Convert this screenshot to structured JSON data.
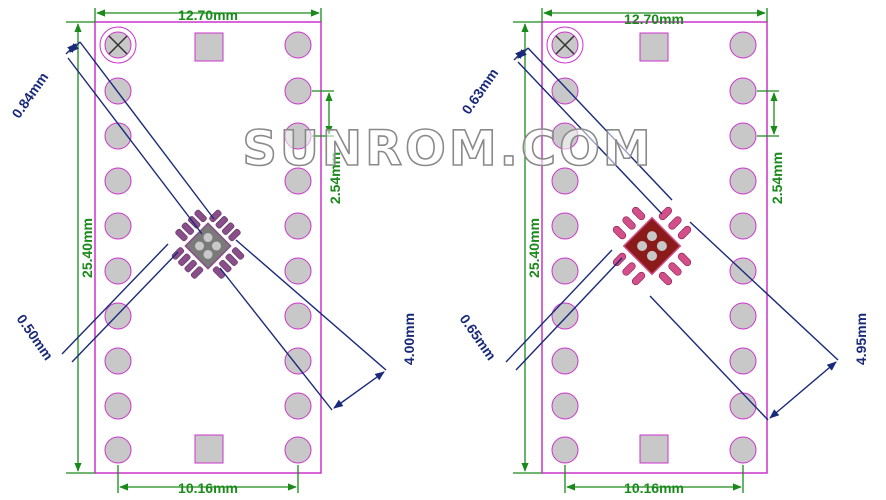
{
  "watermark": "SUNROM.COM",
  "colors": {
    "board_outline": "#cc33cc",
    "pad_fill": "#c8c8c8",
    "pad_stroke": "#cc33cc",
    "dim_green": "#1a8a1a",
    "dim_navy": "#1a2a7a",
    "ic_pad_purple": "#8a4f8a",
    "ic_pad_pink": "#d24f8a",
    "ic_body_gray": "#7a7a7a",
    "ic_body_red": "#8b1a1a"
  },
  "boards": [
    {
      "id": "left",
      "package": "QFN 0.50mm pitch",
      "board_width": "12.70mm",
      "board_height": "25.40mm",
      "row_spacing": "10.16mm",
      "pin_pitch": "2.54mm",
      "pad_length": "0.84mm",
      "pad_pitch": "0.50mm",
      "body_size": "4.00mm"
    },
    {
      "id": "right",
      "package": "QFN 0.65mm pitch",
      "board_width": "12.70mm",
      "board_height": "25.40mm",
      "row_spacing": "10.16mm",
      "pin_pitch": "2.54mm",
      "pad_length": "0.63mm",
      "pad_pitch": "0.65mm",
      "body_size": "4.95mm"
    }
  ]
}
